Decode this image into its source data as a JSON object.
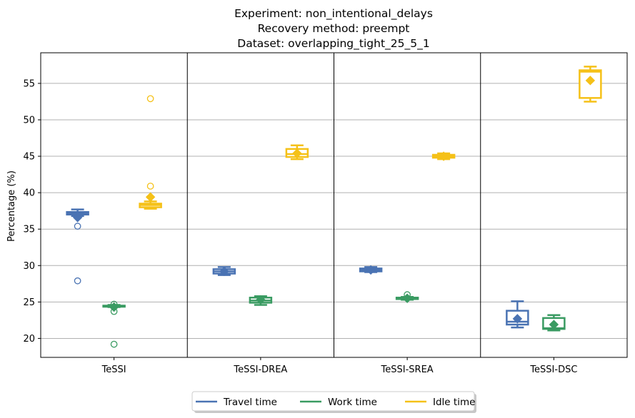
{
  "chart_data": {
    "type": "boxplot",
    "title_lines": [
      "Experiment: non_intentional_delays",
      "Recovery method: preempt",
      "Dataset: overlapping_tight_25_5_1"
    ],
    "xlabel": "",
    "ylabel": "Percentage (%)",
    "ylim": [
      17.4,
      59.2
    ],
    "yticks": [
      20,
      25,
      30,
      35,
      40,
      45,
      50,
      55
    ],
    "grid": "horizontal",
    "legend_position": "bottom-center",
    "categories": [
      "TeSSI",
      "TeSSI-DREA",
      "TeSSI-SREA",
      "TeSSI-DSC"
    ],
    "series": [
      {
        "name": "Travel time",
        "color": "#4a73b3",
        "boxes": [
          {
            "whisker_low": 36.8,
            "q1": 37.0,
            "median": 37.2,
            "q3": 37.35,
            "whisker_high": 37.7,
            "mean": 36.6,
            "outliers": [
              35.4,
              27.9
            ]
          },
          {
            "whisker_low": 28.7,
            "q1": 28.9,
            "median": 29.2,
            "q3": 29.5,
            "whisker_high": 29.8,
            "mean": 29.2,
            "outliers": []
          },
          {
            "whisker_low": 29.1,
            "q1": 29.2,
            "median": 29.4,
            "q3": 29.6,
            "whisker_high": 29.8,
            "mean": 29.4,
            "outliers": []
          },
          {
            "whisker_low": 21.5,
            "q1": 21.9,
            "median": 22.3,
            "q3": 23.8,
            "whisker_high": 25.1,
            "mean": 22.7,
            "outliers": []
          }
        ]
      },
      {
        "name": "Work time",
        "color": "#3a9b62",
        "boxes": [
          {
            "whisker_low": 24.3,
            "q1": 24.35,
            "median": 24.4,
            "q3": 24.5,
            "whisker_high": 24.6,
            "mean": 24.3,
            "outliers": [
              24.7,
              23.7,
              19.2
            ]
          },
          {
            "whisker_low": 24.6,
            "q1": 24.9,
            "median": 25.2,
            "q3": 25.6,
            "whisker_high": 25.8,
            "mean": 25.3,
            "outliers": []
          },
          {
            "whisker_low": 25.3,
            "q1": 25.4,
            "median": 25.5,
            "q3": 25.6,
            "whisker_high": 25.7,
            "mean": 25.5,
            "outliers": [
              26.0
            ]
          },
          {
            "whisker_low": 21.1,
            "q1": 21.3,
            "median": 21.4,
            "q3": 22.8,
            "whisker_high": 23.2,
            "mean": 21.9,
            "outliers": []
          }
        ]
      },
      {
        "name": "Idle time",
        "color": "#f5c118",
        "boxes": [
          {
            "whisker_low": 37.8,
            "q1": 38.0,
            "median": 38.3,
            "q3": 38.5,
            "whisker_high": 38.8,
            "mean": 39.4,
            "outliers": [
              40.9,
              52.9
            ]
          },
          {
            "whisker_low": 44.6,
            "q1": 44.9,
            "median": 45.3,
            "q3": 46.0,
            "whisker_high": 46.5,
            "mean": 45.4,
            "outliers": []
          },
          {
            "whisker_low": 44.6,
            "q1": 44.8,
            "median": 45.0,
            "q3": 45.2,
            "whisker_high": 45.4,
            "mean": 45.0,
            "outliers": []
          },
          {
            "whisker_low": 52.5,
            "q1": 53.0,
            "median": 56.6,
            "q3": 56.8,
            "whisker_high": 57.3,
            "mean": 55.4,
            "outliers": []
          }
        ]
      }
    ]
  }
}
